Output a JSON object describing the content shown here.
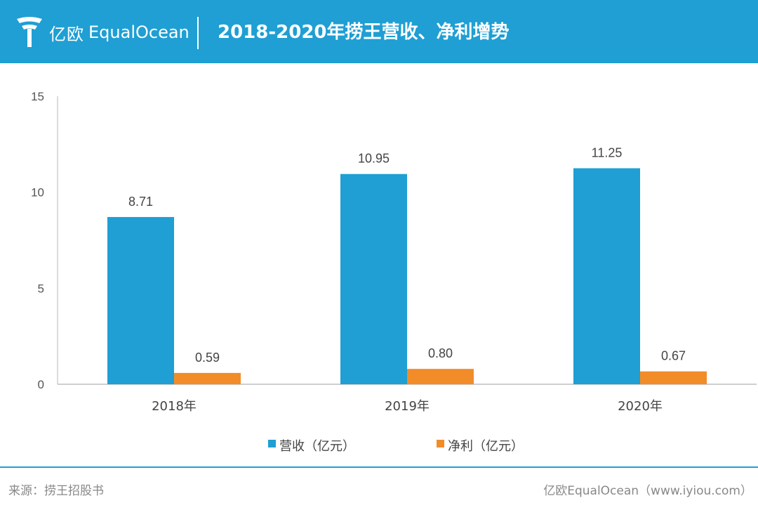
{
  "header": {
    "logo_cn": "亿欧",
    "logo_en": "EqualOcean",
    "title": "2018-2020年捞王营收、净利增势",
    "background_color": "#1f9fd3"
  },
  "chart_data": {
    "type": "bar",
    "title": "2018-2020年捞王营收、净利增势",
    "categories": [
      "2018年",
      "2019年",
      "2020年"
    ],
    "series": [
      {
        "name": "营收（亿元）",
        "values": [
          8.71,
          10.95,
          11.25
        ],
        "color": "#1f9fd3",
        "labels": [
          "8.71",
          "10.95",
          "11.25"
        ]
      },
      {
        "name": "净利（亿元）",
        "values": [
          0.59,
          0.8,
          0.67
        ],
        "color": "#f28c28",
        "labels": [
          "0.59",
          "0.80",
          "0.67"
        ]
      }
    ],
    "yticks": [
      "0",
      "5",
      "10",
      "15"
    ],
    "ylim": [
      0,
      15
    ],
    "xlabel": "",
    "ylabel": "",
    "legend": "bottom-center",
    "grid": false
  },
  "footer": {
    "source": "来源：捞王招股书",
    "credit": "亿欧EqualOcean（www.iyiou.com）"
  }
}
